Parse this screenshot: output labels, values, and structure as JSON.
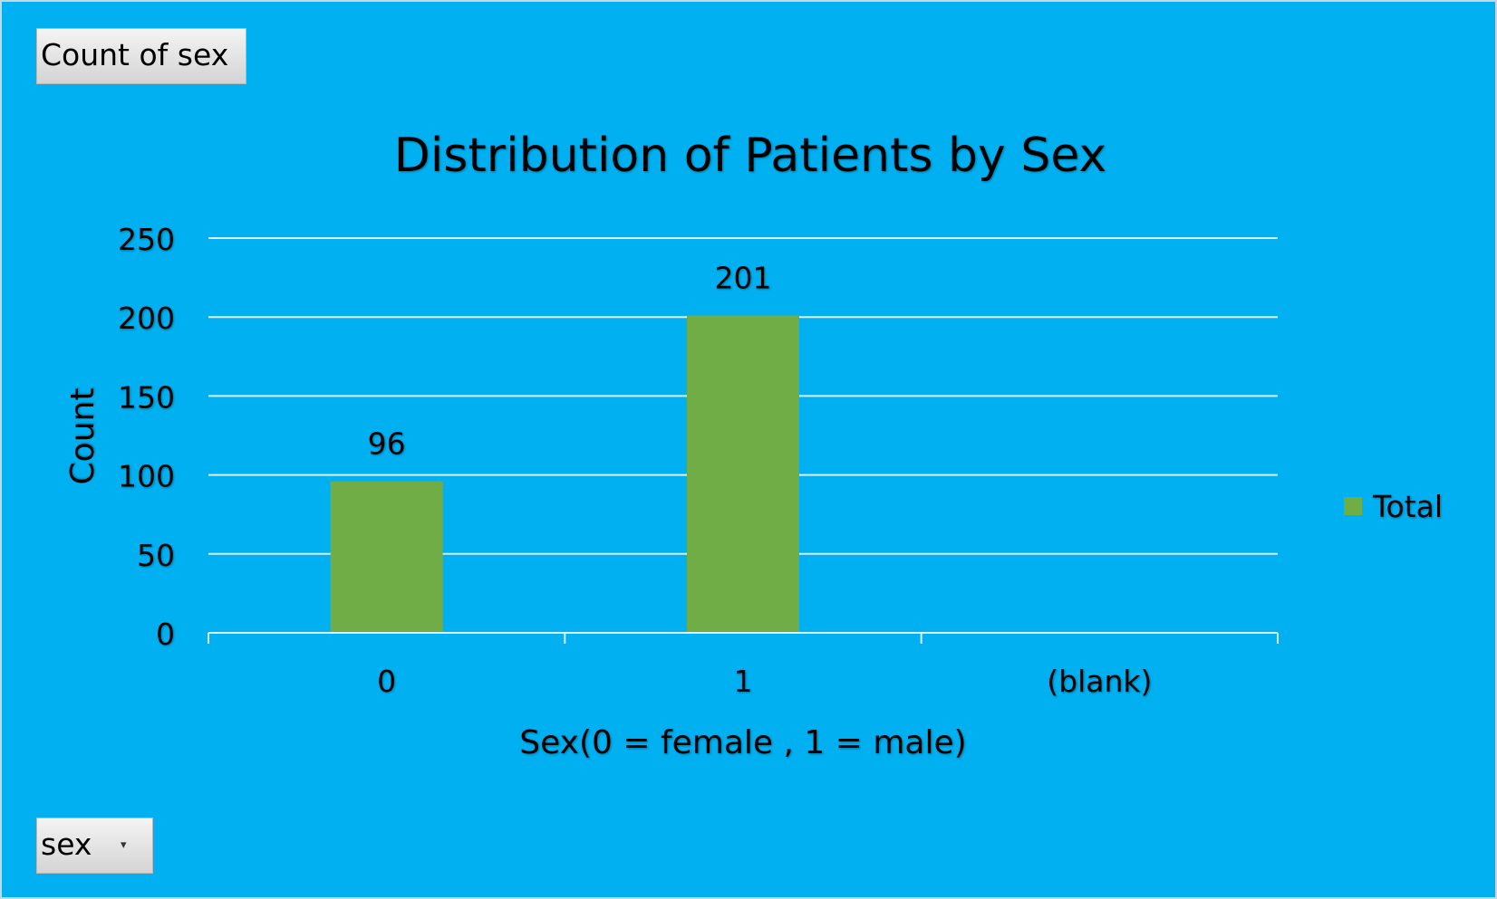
{
  "field_buttons": {
    "value_field": "Count of sex",
    "axis_field": "sex"
  },
  "colors": {
    "background": "#00b0f0",
    "bar": "#70ad47",
    "gridline": "#d9f2fb"
  },
  "chart_data": {
    "type": "bar",
    "title": "Distribution of Patients by Sex",
    "xlabel": "Sex(0 = female , 1 = male)",
    "ylabel": "Count",
    "categories": [
      "0",
      "1",
      "(blank)"
    ],
    "series": [
      {
        "name": "Total",
        "values": [
          96,
          201,
          null
        ]
      }
    ],
    "data_labels": [
      "96",
      "201",
      ""
    ],
    "ylim": [
      0,
      250
    ],
    "yticks": [
      0,
      50,
      100,
      150,
      200,
      250
    ],
    "grid": true,
    "legend": "right"
  }
}
